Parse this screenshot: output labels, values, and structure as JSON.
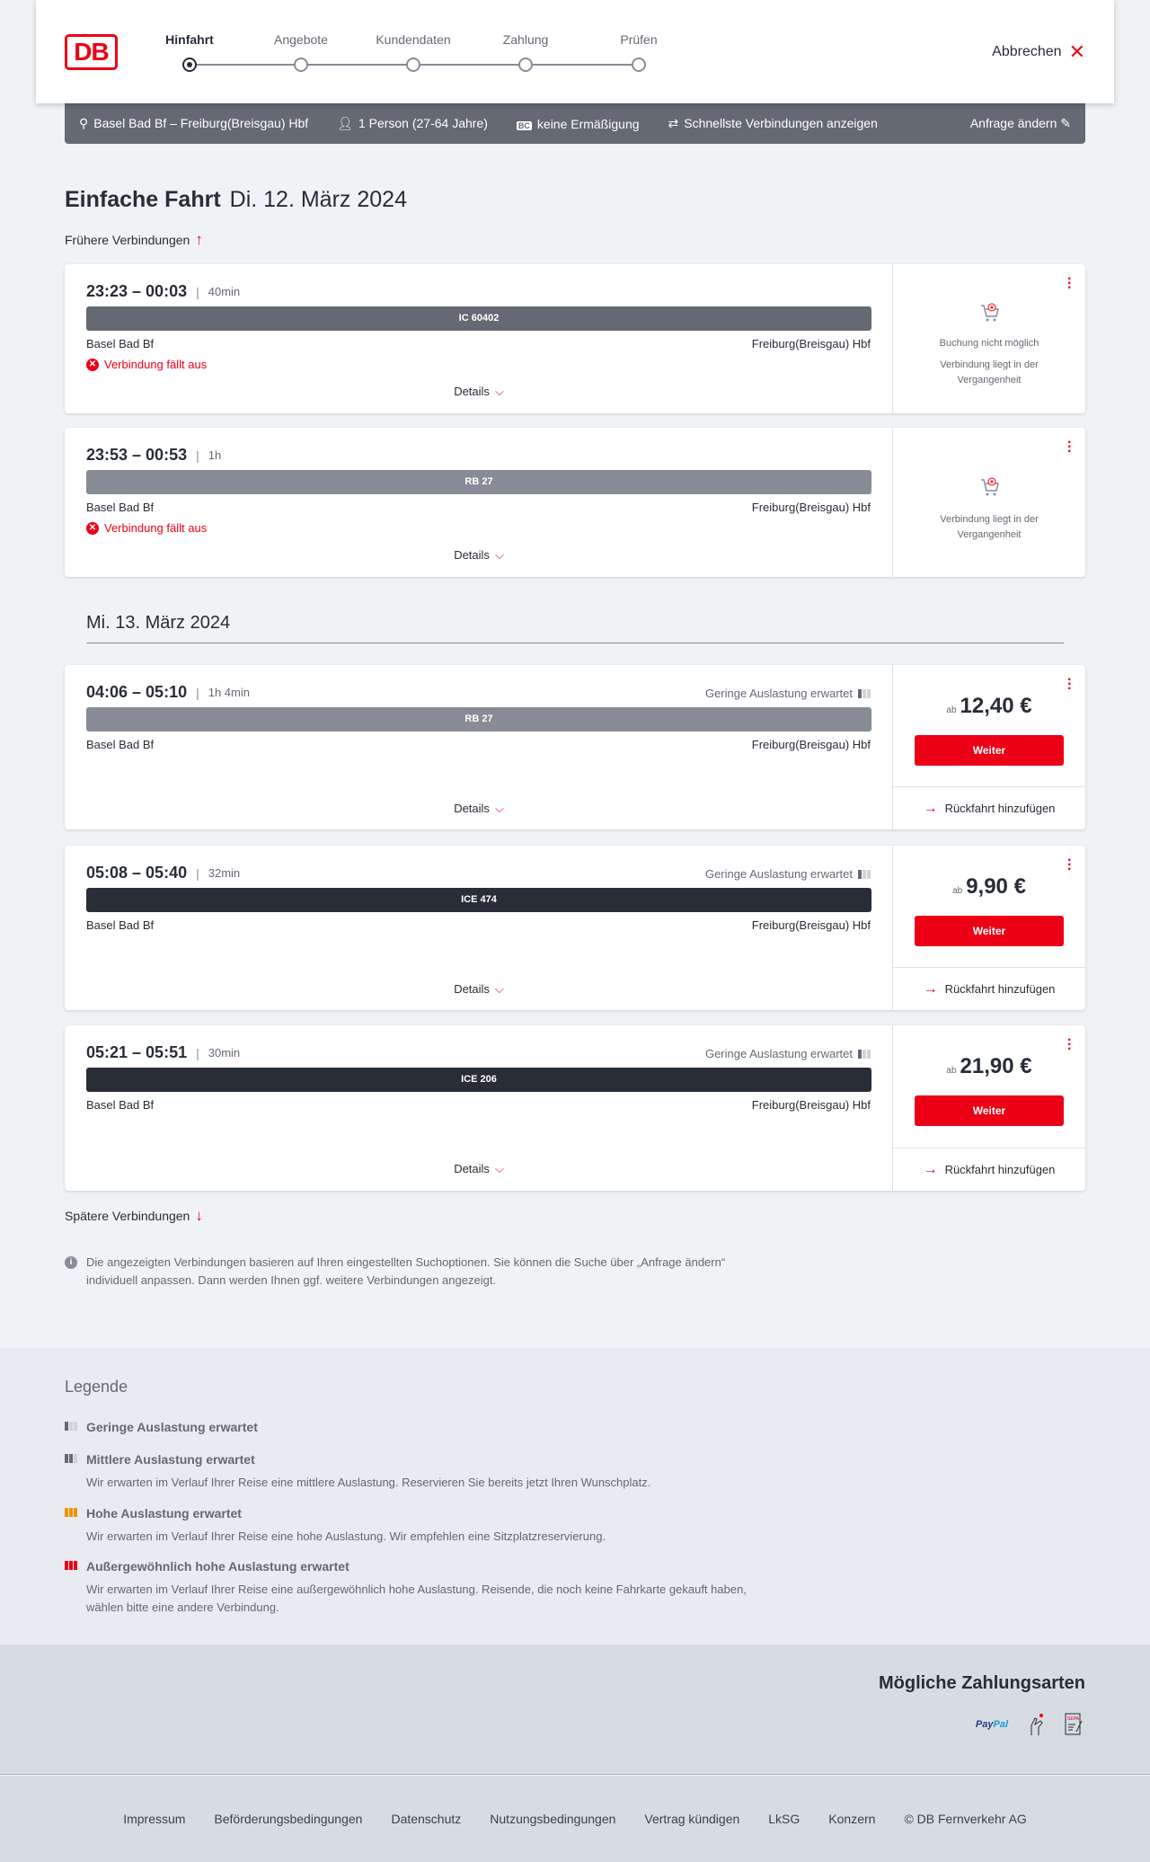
{
  "header": {
    "logo": "DB",
    "steps": [
      "Hinfahrt",
      "Angebote",
      "Kundendaten",
      "Zahlung",
      "Prüfen"
    ],
    "active_step": 0,
    "cancel_label": "Abbrechen"
  },
  "query": {
    "route": "Basel Bad Bf – Freiburg(Breisgau) Hbf",
    "passengers": "1 Person (27-64 Jahre)",
    "discount_badge": "BC",
    "discount": "keine Ermäßigung",
    "option": "Schnellste Verbindungen anzeigen",
    "edit": "Anfrage ändern"
  },
  "page": {
    "title_bold": "Einfache Fahrt",
    "title_date": "Di. 12. März 2024",
    "earlier": "Frühere Verbindungen",
    "later": "Spätere Verbindungen",
    "day2": "Mi. 13. März 2024",
    "info": "Die angezeigten Verbindungen basieren auf Ihren eingestellten Suchoptionen. Sie können die Suche über „Anfrage ändern“ individuell anpassen. Dann werden Ihnen ggf. weitere Verbindungen angezeigt."
  },
  "common": {
    "from": "Basel Bad Bf",
    "to": "Freiburg(Breisgau) Hbf",
    "details": "Details",
    "cancelled": "Verbindung fällt aus",
    "booking_impossible": "Buchung nicht möglich",
    "in_past": "Verbindung liegt in der Vergangenheit",
    "load": "Geringe Auslastung erwartet",
    "price_prefix": "ab",
    "continue": "Weiter",
    "add_return": "Rückfahrt hinzufügen"
  },
  "connections": [
    {
      "time": "23:23 – 00:03",
      "duration": "40min",
      "train": "IC 60402",
      "bar_color": "#646973"
    },
    {
      "time": "23:53 – 00:53",
      "duration": "1h",
      "train": "RB 27",
      "bar_color": "#878c96"
    },
    {
      "time": "04:06 – 05:10",
      "duration": "1h 4min",
      "train": "RB 27",
      "bar_color": "#878c96",
      "price": "12,40 €"
    },
    {
      "time": "05:08 – 05:40",
      "duration": "32min",
      "train": "ICE 474",
      "bar_color": "#282d37",
      "price": "9,90 €"
    },
    {
      "time": "05:21 – 05:51",
      "duration": "30min",
      "train": "ICE 206",
      "bar_color": "#282d37",
      "price": "21,90 €"
    }
  ],
  "legend": {
    "title": "Legende",
    "items": [
      {
        "title": "Geringe Auslastung erwartet"
      },
      {
        "title": "Mittlere Auslastung erwartet",
        "text": "Wir erwarten im Verlauf Ihrer Reise eine mittlere Auslastung. Reservieren Sie bereits jetzt Ihren Wunschplatz."
      },
      {
        "title": "Hohe Auslastung erwartet",
        "text": "Wir erwarten im Verlauf Ihrer Reise eine hohe Auslastung. Wir empfehlen eine Sitzplatzreservierung."
      },
      {
        "title": "Außergewöhnlich hohe Auslastung erwartet",
        "text": "Wir erwarten im Verlauf Ihrer Reise eine außergewöhnlich hohe Auslastung. Reisende, die noch keine Fahrkarte gekauft haben, wählen bitte eine andere Verbindung."
      }
    ]
  },
  "payment": {
    "title": "Mögliche Zahlungsarten",
    "paypal_a": "Pay",
    "paypal_b": "Pal",
    "sepa": "SEPA"
  },
  "footer": {
    "links": [
      "Impressum",
      "Beförderungsbedingungen",
      "Datenschutz",
      "Nutzungsbedingungen",
      "Vertrag kündigen",
      "LkSG",
      "Konzern",
      "© DB Fernverkehr AG"
    ]
  },
  "colors": {
    "accent": "#ec0016",
    "background": "#f0f3f5",
    "query_bar": "#646973"
  }
}
